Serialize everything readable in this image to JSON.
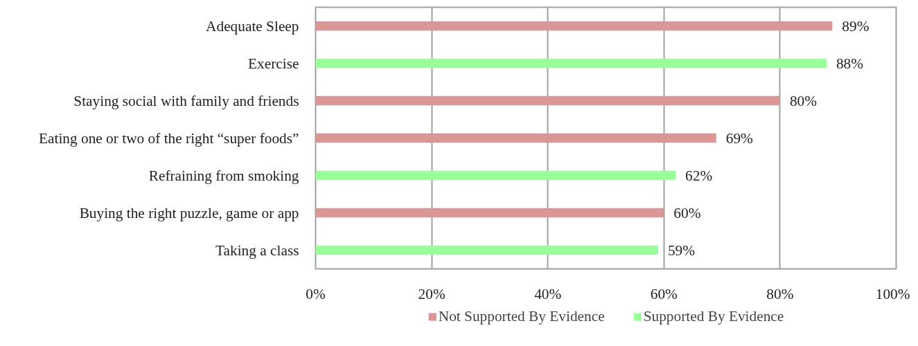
{
  "chart_data": {
    "type": "bar",
    "orientation": "horizontal",
    "categories": [
      "Adequate Sleep",
      "Exercise",
      "Staying social with family and friends",
      "Eating one or two of the right “super foods”",
      "Refraining from smoking",
      "Buying the right puzzle, game or app",
      "Taking a class"
    ],
    "series": [
      {
        "name": "Not Supported By Evidence",
        "color": "#d99694",
        "values": [
          89,
          null,
          80,
          69,
          null,
          60,
          null
        ],
        "value_labels": [
          "89%",
          null,
          "80%",
          "69%",
          null,
          "60%",
          null
        ]
      },
      {
        "name": "Supported By Evidence",
        "color": "#99ff99",
        "values": [
          null,
          88,
          null,
          null,
          62,
          null,
          59
        ],
        "value_labels": [
          null,
          "88%",
          null,
          null,
          "62%",
          null,
          "59%"
        ]
      }
    ],
    "xlim": [
      0,
      100
    ],
    "xticks": [
      {
        "value": 0,
        "label": "0%"
      },
      {
        "value": 20,
        "label": "20%"
      },
      {
        "value": 40,
        "label": "40%"
      },
      {
        "value": 60,
        "label": "60%"
      },
      {
        "value": 80,
        "label": "80%"
      },
      {
        "value": 100,
        "label": "100%"
      }
    ],
    "grid": "x",
    "legend": "bottom"
  }
}
